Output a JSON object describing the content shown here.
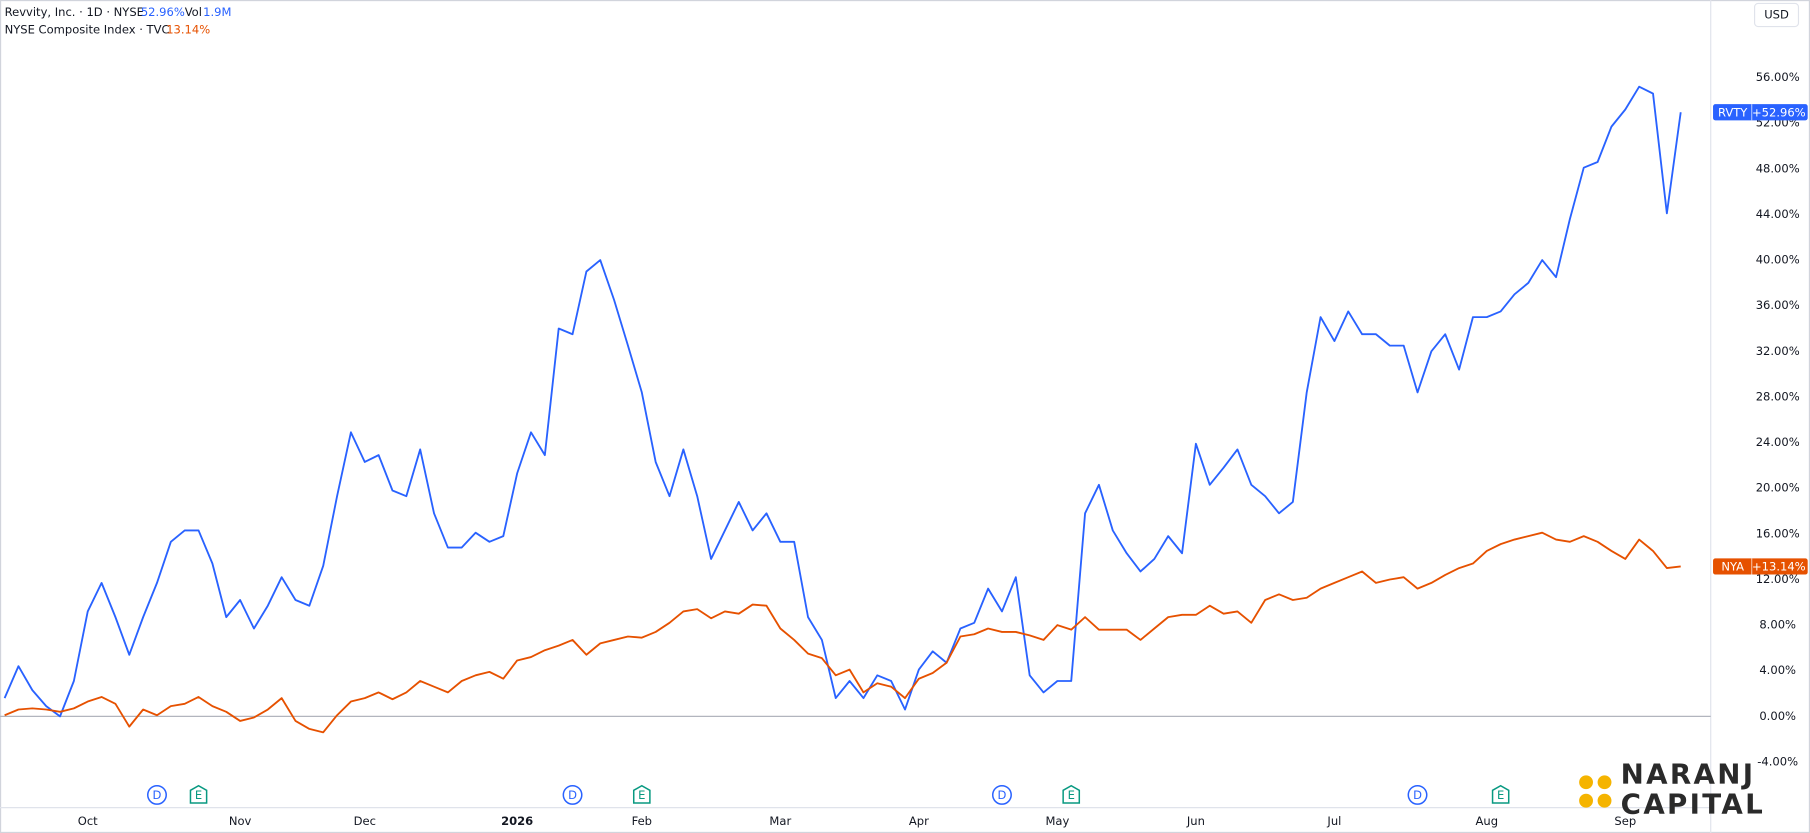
{
  "chart_data": {
    "type": "line",
    "header": {
      "volume_label": "Vol",
      "volume": "1.9M",
      "currency": "USD"
    },
    "categories": [
      null,
      null,
      null,
      null,
      null,
      null,
      "Oct",
      null,
      null,
      null,
      null,
      null,
      null,
      null,
      null,
      null,
      null,
      "Nov",
      null,
      null,
      null,
      null,
      null,
      null,
      null,
      null,
      "Dec",
      null,
      null,
      null,
      null,
      null,
      null,
      null,
      null,
      null,
      null,
      "2026",
      null,
      null,
      null,
      null,
      null,
      null,
      null,
      null,
      "Feb",
      null,
      null,
      null,
      null,
      null,
      null,
      null,
      null,
      null,
      "Mar",
      null,
      null,
      null,
      null,
      null,
      null,
      null,
      null,
      null,
      "Apr",
      null,
      null,
      null,
      null,
      null,
      null,
      null,
      null,
      null,
      "May",
      null,
      null,
      null,
      null,
      null,
      null,
      null,
      null,
      null,
      "Jun",
      null,
      null,
      null,
      null,
      null,
      null,
      null,
      null,
      null,
      "Jul",
      null,
      null,
      null,
      null,
      null,
      null,
      null,
      null,
      null,
      null,
      "Aug",
      null,
      null,
      null,
      null,
      null,
      null,
      null,
      null,
      null,
      "Sep",
      null,
      null,
      null,
      null
    ],
    "series": [
      {
        "name": "Revvity, Inc. · 1D · NYSE",
        "symbol": "RVTY",
        "change": "52.96%",
        "last_label": "+52.96%",
        "color": "#2962ff",
        "values": [
          1.6,
          4.4,
          2.3,
          0.9,
          0.0,
          3.1,
          9.2,
          11.7,
          8.7,
          5.4,
          8.7,
          11.7,
          15.3,
          16.3,
          16.3,
          13.4,
          8.7,
          10.2,
          7.7,
          9.7,
          12.2,
          10.2,
          9.7,
          13.2,
          19.3,
          24.9,
          22.3,
          22.9,
          19.8,
          19.3,
          23.4,
          17.8,
          14.8,
          14.8,
          16.1,
          15.3,
          15.8,
          21.3,
          24.9,
          22.9,
          34.0,
          33.5,
          39.0,
          40.0,
          36.5,
          32.5,
          28.4,
          22.3,
          19.3,
          23.4,
          19.3,
          13.8,
          16.3,
          18.8,
          16.3,
          17.8,
          15.3,
          15.3,
          8.7,
          6.7,
          1.6,
          3.1,
          1.6,
          3.6,
          3.1,
          0.6,
          4.1,
          5.7,
          4.7,
          7.7,
          8.2,
          11.2,
          9.2,
          12.2,
          3.6,
          2.1,
          3.1,
          3.1,
          17.8,
          20.3,
          16.3,
          14.3,
          12.7,
          13.8,
          15.8,
          14.3,
          23.9,
          20.3,
          21.8,
          23.4,
          20.3,
          19.3,
          17.8,
          18.8,
          28.4,
          35.0,
          32.9,
          35.5,
          33.5,
          33.5,
          32.5,
          32.5,
          28.4,
          32.0,
          33.5,
          30.4,
          35.0,
          35.0,
          35.5,
          37.0,
          38.0,
          40.0,
          38.5,
          43.6,
          48.1,
          48.6,
          51.7,
          53.2,
          55.2,
          54.6,
          44.1,
          52.96
        ]
      },
      {
        "name": "NYSE Composite Index · TVC",
        "symbol": "NYA",
        "change": "13.14%",
        "last_label": "+13.14%",
        "color": "#e65100",
        "values": [
          0.1,
          0.6,
          0.7,
          0.6,
          0.4,
          0.7,
          1.3,
          1.7,
          1.1,
          -0.9,
          0.6,
          0.1,
          0.9,
          1.1,
          1.7,
          0.9,
          0.4,
          -0.4,
          -0.1,
          0.6,
          1.6,
          -0.4,
          -1.1,
          -1.4,
          0.1,
          1.3,
          1.6,
          2.1,
          1.5,
          2.1,
          3.1,
          2.6,
          2.1,
          3.1,
          3.6,
          3.9,
          3.3,
          4.9,
          5.2,
          5.8,
          6.2,
          6.7,
          5.4,
          6.4,
          6.7,
          7.0,
          6.9,
          7.4,
          8.2,
          9.2,
          9.4,
          8.6,
          9.2,
          9.0,
          9.8,
          9.7,
          7.7,
          6.7,
          5.5,
          5.1,
          3.6,
          4.1,
          2.1,
          2.9,
          2.6,
          1.6,
          3.3,
          3.8,
          4.7,
          7.0,
          7.2,
          7.7,
          7.4,
          7.4,
          7.1,
          6.7,
          8.0,
          7.6,
          8.7,
          7.6,
          7.6,
          7.6,
          6.7,
          7.7,
          8.7,
          8.9,
          8.9,
          9.7,
          9.0,
          9.2,
          8.2,
          10.2,
          10.7,
          10.2,
          10.4,
          11.2,
          11.7,
          12.2,
          12.7,
          11.7,
          12.0,
          12.2,
          11.2,
          11.7,
          12.4,
          13.0,
          13.4,
          14.5,
          15.1,
          15.5,
          15.8,
          16.1,
          15.5,
          15.3,
          15.8,
          15.3,
          14.5,
          13.8,
          15.5,
          14.5,
          13.0,
          13.14
        ]
      }
    ],
    "events": [
      {
        "x_index": 11,
        "label": "D",
        "kind": "dividend"
      },
      {
        "x_index": 14,
        "label": "E",
        "kind": "earnings"
      },
      {
        "x_index": 41,
        "label": "D",
        "kind": "dividend"
      },
      {
        "x_index": 46,
        "label": "E",
        "kind": "earnings"
      },
      {
        "x_index": 72,
        "label": "D",
        "kind": "dividend"
      },
      {
        "x_index": 77,
        "label": "E",
        "kind": "earnings"
      },
      {
        "x_index": 102,
        "label": "D",
        "kind": "dividend"
      },
      {
        "x_index": 108,
        "label": "E",
        "kind": "earnings"
      }
    ],
    "ylim": [
      -8,
      62.8
    ],
    "yticks": [
      {
        "value": -4,
        "label": "-4.00%"
      },
      {
        "value": 0,
        "label": "0.00%"
      },
      {
        "value": 4,
        "label": "4.00%"
      },
      {
        "value": 8,
        "label": "8.00%"
      },
      {
        "value": 12,
        "label": "12.00%"
      },
      {
        "value": 16,
        "label": "16.00%"
      },
      {
        "value": 20,
        "label": "20.00%"
      },
      {
        "value": 24,
        "label": "24.00%"
      },
      {
        "value": 28,
        "label": "28.00%"
      },
      {
        "value": 32,
        "label": "32.00%"
      },
      {
        "value": 36,
        "label": "36.00%"
      },
      {
        "value": 40,
        "label": "40.00%"
      },
      {
        "value": 44,
        "label": "44.00%"
      },
      {
        "value": 48,
        "label": "48.00%"
      },
      {
        "value": 52,
        "label": "52.00%"
      },
      {
        "value": 56,
        "label": "56.00%"
      }
    ],
    "grid": false,
    "zero_line": true,
    "logo": {
      "line1": "NARANJ",
      "line2": "CAPITAL"
    }
  }
}
